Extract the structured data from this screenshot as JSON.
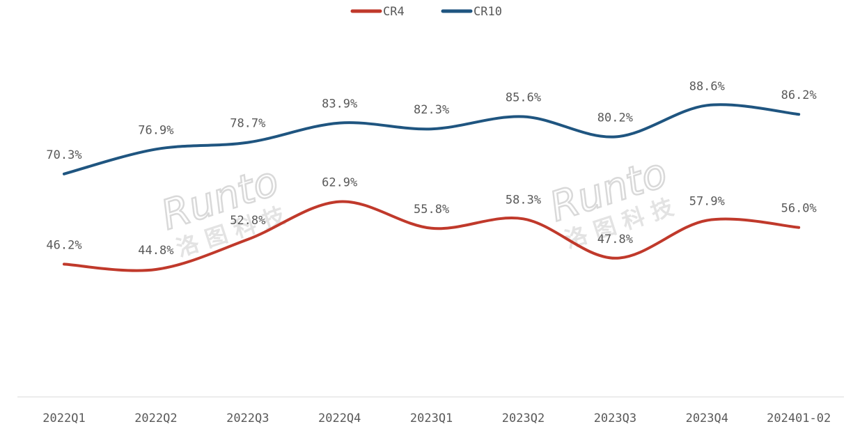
{
  "colors": {
    "CR4": "#c0392b",
    "CR10": "#1f5580",
    "axis": "#d9d9d9",
    "text": "#595959"
  },
  "watermark": {
    "latin": "Runto",
    "cjk": "洛 图 科 技"
  },
  "chart_data": {
    "type": "line",
    "categories": [
      "2022Q1",
      "2022Q2",
      "2022Q3",
      "2022Q4",
      "2023Q1",
      "2023Q2",
      "2023Q3",
      "2023Q4",
      "202401-02"
    ],
    "series": [
      {
        "name": "CR4",
        "values": [
          46.2,
          44.8,
          52.8,
          62.9,
          55.8,
          58.3,
          47.8,
          57.9,
          56.0
        ],
        "labels": [
          "46.2%",
          "44.8%",
          "52.8%",
          "62.9%",
          "55.8%",
          "58.3%",
          "47.8%",
          "57.9%",
          "56.0%"
        ]
      },
      {
        "name": "CR10",
        "values": [
          70.3,
          76.9,
          78.7,
          83.9,
          82.3,
          85.6,
          80.2,
          88.6,
          86.2
        ],
        "labels": [
          "70.3%",
          "76.9%",
          "78.7%",
          "83.9%",
          "82.3%",
          "85.6%",
          "80.2%",
          "88.6%",
          "86.2%"
        ]
      }
    ],
    "title": "",
    "xlabel": "",
    "ylabel": "",
    "ylim": [
      30,
      100
    ],
    "grid": false,
    "legend": "top-center",
    "smooth": true
  }
}
